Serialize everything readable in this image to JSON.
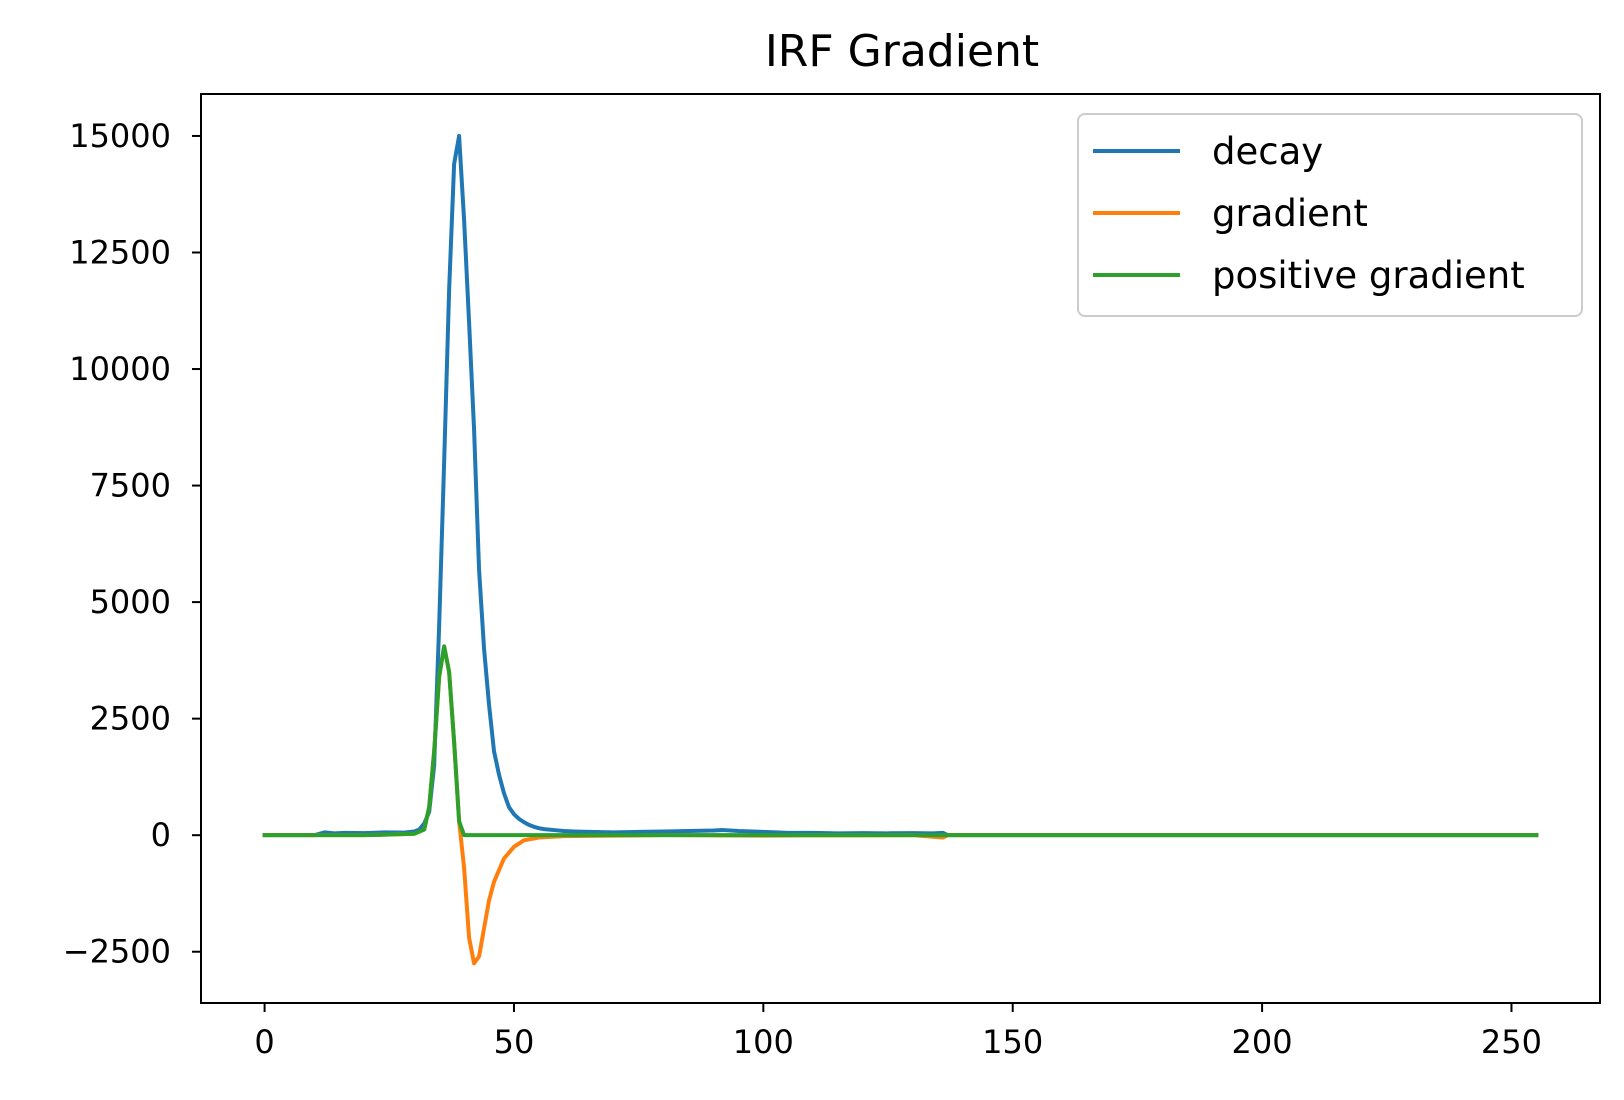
{
  "chart_data": {
    "type": "line",
    "title": "IRF Gradient",
    "xlabel": "",
    "ylabel": "",
    "xlim": [
      -12.75,
      267.75
    ],
    "ylim": [
      -3600,
      15900
    ],
    "xticks": [
      0,
      50,
      100,
      150,
      200,
      250
    ],
    "yticks": [
      -2500,
      0,
      2500,
      5000,
      7500,
      10000,
      12500,
      15000
    ],
    "xtick_labels": [
      "0",
      "50",
      "100",
      "150",
      "200",
      "250"
    ],
    "ytick_labels": [
      "−2500",
      "0",
      "2500",
      "5000",
      "7500",
      "10000",
      "12500",
      "15000"
    ],
    "grid": false,
    "legend_position": "top-right",
    "series": [
      {
        "name": "decay",
        "color": "#1f77b4",
        "x": [
          0,
          10,
          12,
          14,
          16,
          20,
          24,
          28,
          30,
          31,
          32,
          33,
          34,
          35,
          36,
          37,
          38,
          39,
          40,
          41,
          42,
          43,
          44,
          45,
          46,
          47,
          48,
          49,
          50,
          51,
          52,
          53,
          54,
          55,
          56,
          58,
          60,
          62,
          65,
          70,
          75,
          80,
          85,
          90,
          92,
          95,
          100,
          105,
          110,
          115,
          120,
          125,
          130,
          134,
          136,
          137,
          140,
          150,
          200,
          255
        ],
        "y": [
          0,
          0,
          60,
          40,
          50,
          45,
          60,
          55,
          80,
          120,
          250,
          500,
          1500,
          4500,
          8000,
          11700,
          14400,
          15000,
          13200,
          11000,
          8700,
          5700,
          4000,
          2800,
          1800,
          1300,
          900,
          600,
          450,
          350,
          280,
          220,
          180,
          150,
          130,
          110,
          90,
          80,
          70,
          60,
          70,
          80,
          90,
          100,
          110,
          90,
          70,
          50,
          50,
          40,
          45,
          40,
          45,
          40,
          50,
          0,
          0,
          0,
          0,
          0
        ]
      },
      {
        "name": "gradient",
        "color": "#ff7f0e",
        "x": [
          0,
          10,
          20,
          30,
          32,
          33,
          34,
          35,
          36,
          37,
          38,
          39,
          40,
          41,
          42,
          43,
          44,
          45,
          46,
          48,
          50,
          52,
          55,
          60,
          70,
          80,
          90,
          100,
          110,
          120,
          130,
          136,
          137,
          140,
          200,
          255
        ],
        "y": [
          0,
          0,
          0,
          30,
          120,
          600,
          1800,
          3400,
          4050,
          3500,
          2000,
          300,
          -700,
          -2200,
          -2750,
          -2600,
          -2000,
          -1400,
          -1000,
          -500,
          -250,
          -110,
          -50,
          -20,
          -10,
          0,
          -5,
          -10,
          -5,
          -5,
          0,
          -50,
          0,
          0,
          0,
          0
        ]
      },
      {
        "name": "positive gradient",
        "color": "#2ca02c",
        "x": [
          0,
          10,
          20,
          30,
          32,
          33,
          34,
          35,
          36,
          37,
          38,
          39,
          40,
          41,
          60,
          100,
          150,
          200,
          255
        ],
        "y": [
          0,
          0,
          0,
          30,
          120,
          600,
          1800,
          3400,
          4050,
          3500,
          2000,
          300,
          0,
          0,
          0,
          0,
          0,
          0,
          0
        ]
      }
    ]
  }
}
